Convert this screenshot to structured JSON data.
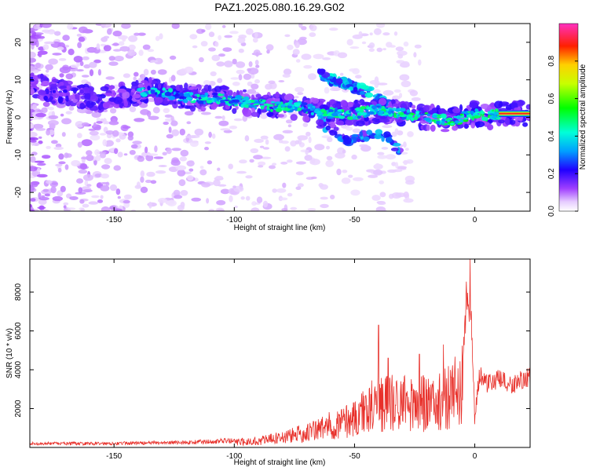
{
  "title": "PAZ1.2025.080.16.29.G02",
  "chart_data": [
    {
      "type": "heatmap",
      "xlabel": "Height of straight line (km)",
      "ylabel": "Frequency (Hz)",
      "xlim": [
        -185,
        23
      ],
      "ylim": [
        -25,
        25
      ],
      "xticks": [
        -150,
        -100,
        -50,
        0
      ],
      "yticks": [
        -20,
        -10,
        0,
        10,
        20
      ],
      "colorbar": {
        "label": "Normalized spectral amplitude",
        "ticks": [
          0.0,
          0.2,
          0.4,
          0.6,
          0.8
        ],
        "range": [
          0,
          1
        ]
      },
      "ridge": {
        "x": [
          -185,
          -175,
          -165,
          -155,
          -145,
          -135,
          -125,
          -115,
          -105,
          -95,
          -85,
          -75,
          -68,
          -60,
          -50,
          -40,
          -30,
          -20,
          -10,
          -5,
          0,
          5,
          10,
          23
        ],
        "y": [
          9,
          7,
          6,
          5,
          6,
          7,
          6,
          5,
          5,
          4,
          3,
          3,
          2,
          1,
          1,
          2,
          1,
          0,
          -1,
          0,
          1,
          0,
          1,
          1
        ]
      },
      "upper_branch": {
        "x": [
          -65,
          -60,
          -55,
          -50,
          -45,
          -40,
          -35
        ],
        "y": [
          12,
          10,
          9,
          8,
          7,
          5,
          3
        ]
      },
      "lower_branch": {
        "x": [
          -65,
          -58,
          -52,
          -45,
          -40,
          -35,
          -30
        ],
        "y": [
          -1,
          -4,
          -6,
          -5,
          -4,
          -6,
          -10
        ]
      }
    },
    {
      "type": "line",
      "xlabel": "Height of straight line (km)",
      "ylabel": "SNR (10 * v/v)",
      "xlim": [
        -185,
        23
      ],
      "ylim": [
        0,
        9700
      ],
      "xticks": [
        -150,
        -100,
        -50,
        0
      ],
      "yticks": [
        2000,
        4000,
        6000,
        8000
      ],
      "color": "#e8302a",
      "envelope": {
        "x": [
          -185,
          -160,
          -140,
          -120,
          -100,
          -90,
          -80,
          -70,
          -60,
          -50,
          -45,
          -40,
          -35,
          -30,
          -25,
          -20,
          -15,
          -10,
          -5,
          -3,
          -1,
          0,
          2,
          5,
          10,
          15,
          20,
          23
        ],
        "y": [
          200,
          200,
          220,
          260,
          350,
          450,
          700,
          1000,
          1500,
          2000,
          2600,
          3200,
          3000,
          3200,
          3000,
          3000,
          3100,
          3600,
          4500,
          8500,
          5500,
          1600,
          3800,
          3300,
          3500,
          3200,
          3500,
          3600
        ]
      },
      "spikes": [
        {
          "x": -40,
          "y": 6300
        },
        {
          "x": -36,
          "y": 4600
        },
        {
          "x": -23,
          "y": 4800
        },
        {
          "x": -13,
          "y": 5300
        },
        {
          "x": -4,
          "y": 6800
        },
        {
          "x": -2,
          "y": 9700
        },
        {
          "x": 0,
          "y": 1200
        }
      ]
    }
  ]
}
